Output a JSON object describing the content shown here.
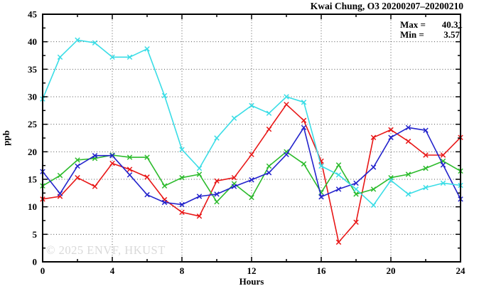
{
  "header": {
    "title": "Kwai Chung, O3 20200207–20200210"
  },
  "stats": {
    "max_label": "Max =",
    "max_value": "40.31",
    "min_label": "Min =",
    "min_value": "3.57"
  },
  "watermark": "© 2025 ENVF, HKUST",
  "chart_data": {
    "type": "line",
    "title": "Kwai Chung, O3 20200207–20200210",
    "xlabel": "Hours",
    "ylabel": "ppb",
    "xlim": [
      0,
      24
    ],
    "ylim": [
      0,
      45
    ],
    "grid": true,
    "legend_position": "none",
    "max": 40.31,
    "min": 3.57,
    "x_major_ticks": [
      0,
      4,
      8,
      12,
      16,
      20,
      24
    ],
    "x_tick_labels": [
      "0",
      "4",
      "8",
      "12",
      "16",
      "20",
      "24"
    ],
    "x_minor_ticks": [
      2,
      6,
      10,
      14,
      18,
      22
    ],
    "y_major_ticks": [
      0,
      5,
      10,
      15,
      20,
      25,
      30,
      35,
      40,
      45
    ],
    "y_tick_labels": [
      "0",
      "5",
      "10",
      "15",
      "20",
      "25",
      "30",
      "35",
      "40",
      "45"
    ],
    "y_minor_ticks": [
      2.5,
      7.5,
      12.5,
      17.5,
      22.5,
      27.5,
      32.5,
      37.5,
      42.5
    ],
    "x": [
      0,
      1,
      2,
      3,
      4,
      5,
      6,
      7,
      8,
      9,
      10,
      11,
      12,
      13,
      14,
      15,
      16,
      17,
      18,
      19,
      20,
      21,
      22,
      23,
      24
    ],
    "series": [
      {
        "name": "series-red",
        "color": "#e81717",
        "marker": "x",
        "values": [
          11.4,
          11.9,
          15.3,
          13.7,
          17.9,
          16.8,
          15.4,
          11.3,
          9.0,
          8.3,
          14.7,
          15.3,
          19.5,
          24.1,
          28.6,
          25.7,
          18.3,
          3.57,
          7.2,
          22.6,
          24.0,
          21.9,
          19.4,
          19.4,
          22.6
        ]
      },
      {
        "name": "series-green",
        "color": "#2cbb2c",
        "marker": "x",
        "values": [
          13.8,
          15.7,
          18.5,
          18.8,
          19.4,
          19.0,
          19.0,
          13.8,
          15.3,
          15.9,
          10.9,
          14.2,
          11.7,
          17.4,
          20.0,
          17.8,
          12.6,
          17.6,
          12.3,
          13.2,
          15.3,
          15.9,
          17.0,
          18.3,
          16.5
        ]
      },
      {
        "name": "series-blue",
        "color": "#2323cc",
        "marker": "x",
        "values": [
          16.4,
          12.4,
          17.4,
          19.3,
          19.3,
          15.8,
          12.2,
          10.8,
          10.4,
          11.9,
          12.3,
          13.7,
          14.9,
          16.2,
          19.5,
          24.4,
          11.8,
          13.2,
          14.3,
          17.2,
          22.6,
          24.4,
          23.9,
          17.6,
          11.4
        ]
      },
      {
        "name": "series-cyan",
        "color": "#3adde6",
        "marker": "x",
        "values": [
          29.6,
          37.2,
          40.31,
          39.8,
          37.2,
          37.2,
          38.7,
          30.2,
          20.4,
          17.0,
          22.5,
          26.1,
          28.4,
          27.0,
          30.0,
          29.0,
          17.4,
          15.8,
          13.2,
          10.3,
          14.8,
          12.3,
          13.5,
          14.3,
          13.9
        ]
      }
    ]
  }
}
